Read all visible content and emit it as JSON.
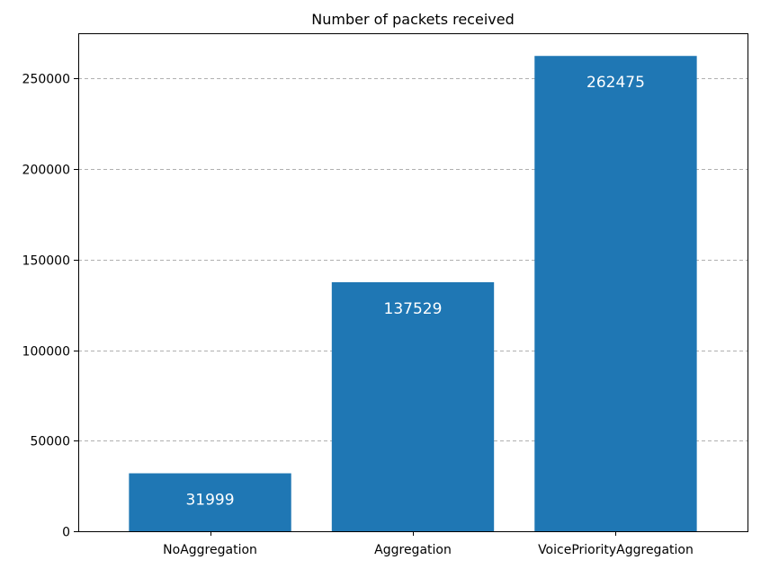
{
  "chart_data": {
    "type": "bar",
    "title": "Number of packets received",
    "xlabel": "",
    "ylabel": "",
    "categories": [
      "NoAggregation",
      "Aggregation",
      "VoicePriorityAggregation"
    ],
    "values": [
      31999,
      137529,
      262475
    ],
    "data_labels": [
      "31999",
      "137529",
      "262475"
    ],
    "ylim": [
      0,
      275000
    ],
    "yticks": [
      0,
      50000,
      100000,
      150000,
      200000,
      250000
    ],
    "grid": "y-dashed",
    "bar_color": "#1f77b4",
    "label_color": "#ffffff",
    "grid_color": "#b0b0b0"
  }
}
